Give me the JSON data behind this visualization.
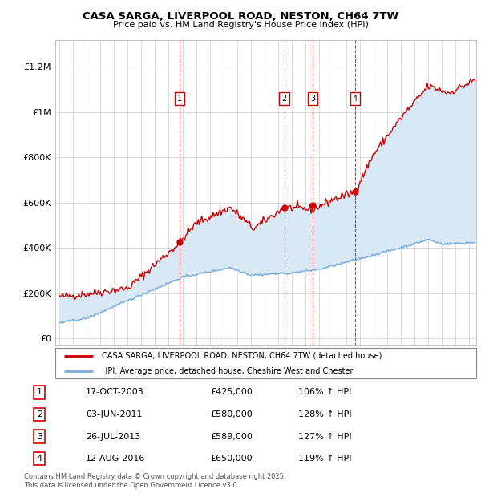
{
  "title": "CASA SARGA, LIVERPOOL ROAD, NESTON, CH64 7TW",
  "subtitle": "Price paid vs. HM Land Registry's House Price Index (HPI)",
  "ylabel_ticks": [
    0,
    200000,
    400000,
    600000,
    800000,
    1000000,
    1200000
  ],
  "ylabel_labels": [
    "£0",
    "£200K",
    "£400K",
    "£600K",
    "£800K",
    "£1M",
    "£1.2M"
  ],
  "xlim": [
    1994.7,
    2025.5
  ],
  "ylim": [
    -30000,
    1320000
  ],
  "sales": [
    {
      "num": 1,
      "date": "17-OCT-2003",
      "price": 425000,
      "pct": "106%",
      "year": 2003.8
    },
    {
      "num": 2,
      "date": "03-JUN-2011",
      "price": 580000,
      "pct": "128%",
      "year": 2011.45
    },
    {
      "num": 3,
      "date": "26-JUL-2013",
      "price": 589000,
      "pct": "127%",
      "year": 2013.55
    },
    {
      "num": 4,
      "date": "12-AUG-2016",
      "price": 650000,
      "pct": "119%",
      "year": 2016.62
    }
  ],
  "legend_line1": "CASA SARGA, LIVERPOOL ROAD, NESTON, CH64 7TW (detached house)",
  "legend_line2": "HPI: Average price, detached house, Cheshire West and Chester",
  "footer1": "Contains HM Land Registry data © Crown copyright and database right 2025.",
  "footer2": "This data is licensed under the Open Government Licence v3.0.",
  "red_color": "#cc0000",
  "blue_color": "#7aaddc",
  "fill_color": "#d8e8f5",
  "plot_bg": "#ffffff",
  "grid_color": "#cccccc"
}
